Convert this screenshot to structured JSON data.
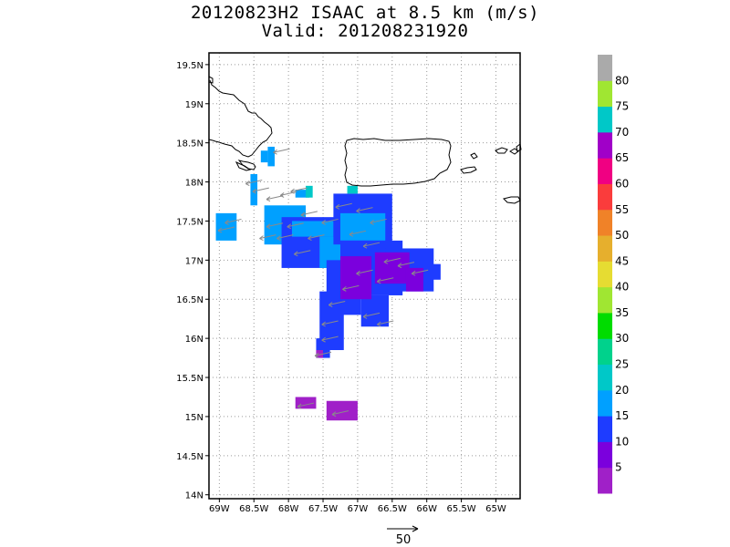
{
  "title": {
    "line1": "20120823H2 ISAAC at 8.5 km (m/s)",
    "line2": "Valid: 201208231920"
  },
  "map": {
    "lon_range": [
      -69.15,
      -64.65
    ],
    "lat_range": [
      13.95,
      19.65
    ],
    "lon_ticks": [
      -69,
      -68.5,
      -68,
      -67.5,
      -67,
      -66.5,
      -66,
      -65.5,
      -65
    ],
    "lon_tick_labels": [
      "69W",
      "68.5W",
      "68W",
      "67.5W",
      "67W",
      "66.5W",
      "66W",
      "65.5W",
      "65W"
    ],
    "lat_ticks": [
      14,
      14.5,
      15,
      15.5,
      16,
      16.5,
      17,
      17.5,
      18,
      18.5,
      19,
      19.5
    ],
    "lat_tick_labels": [
      "14N",
      "14.5N",
      "15N",
      "15.5N",
      "16N",
      "16.5N",
      "17N",
      "17.5N",
      "18N",
      "18.5N",
      "19N",
      "19.5N"
    ],
    "grid": "dotted"
  },
  "colorbar": {
    "levels": [
      5,
      10,
      15,
      20,
      25,
      30,
      35,
      40,
      45,
      50,
      55,
      60,
      65,
      70,
      75,
      80
    ],
    "labels": [
      "5",
      "10",
      "15",
      "20",
      "25",
      "30",
      "35",
      "40",
      "45",
      "50",
      "55",
      "60",
      "65",
      "70",
      "75",
      "80"
    ],
    "colors": [
      "#a020c8",
      "#7b00dd",
      "#1e3cff",
      "#00a0ff",
      "#00c8c8",
      "#00d28c",
      "#00dc00",
      "#a0e632",
      "#e6dc32",
      "#e6af2d",
      "#f08228",
      "#fa3c3c",
      "#f00082",
      "#a000c8",
      "#00c8c8",
      "#a0e632",
      "#aaaaaa"
    ]
  },
  "wind_field": {
    "blocks": [
      {
        "lon": [
          -69.05,
          -68.75
        ],
        "lat": [
          17.25,
          17.6
        ],
        "level": 3
      },
      {
        "lon": [
          -68.55,
          -68.45
        ],
        "lat": [
          17.7,
          18.1
        ],
        "level": 3
      },
      {
        "lon": [
          -68.3,
          -68.2
        ],
        "lat": [
          18.2,
          18.45
        ],
        "level": 3
      },
      {
        "lon": [
          -68.4,
          -68.3
        ],
        "lat": [
          18.25,
          18.4
        ],
        "level": 3
      },
      {
        "lon": [
          -67.9,
          -67.7
        ],
        "lat": [
          17.8,
          17.9
        ],
        "level": 3
      },
      {
        "lon": [
          -67.75,
          -67.65
        ],
        "lat": [
          17.8,
          17.95
        ],
        "level": 4
      },
      {
        "lon": [
          -68.35,
          -67.75
        ],
        "lat": [
          17.2,
          17.7
        ],
        "level": 3
      },
      {
        "lon": [
          -68.1,
          -67.3
        ],
        "lat": [
          16.9,
          17.55
        ],
        "level": 2
      },
      {
        "lon": [
          -67.95,
          -67.35
        ],
        "lat": [
          17.3,
          17.5
        ],
        "level": 3
      },
      {
        "lon": [
          -67.55,
          -67.25
        ],
        "lat": [
          16.9,
          17.3
        ],
        "level": 3
      },
      {
        "lon": [
          -67.35,
          -66.5
        ],
        "lat": [
          17.2,
          17.85
        ],
        "level": 2
      },
      {
        "lon": [
          -67.25,
          -66.6
        ],
        "lat": [
          17.25,
          17.6
        ],
        "level": 3
      },
      {
        "lon": [
          -67.15,
          -67.0
        ],
        "lat": [
          17.85,
          17.95
        ],
        "level": 4
      },
      {
        "lon": [
          -67.25,
          -66.35
        ],
        "lat": [
          16.55,
          17.25
        ],
        "level": 2
      },
      {
        "lon": [
          -66.6,
          -65.9
        ],
        "lat": [
          16.6,
          17.15
        ],
        "level": 2
      },
      {
        "lon": [
          -65.95,
          -65.8
        ],
        "lat": [
          16.75,
          16.95
        ],
        "level": 2
      },
      {
        "lon": [
          -67.45,
          -67.1
        ],
        "lat": [
          16.4,
          17.0
        ],
        "level": 2
      },
      {
        "lon": [
          -67.55,
          -67.2
        ],
        "lat": [
          15.85,
          16.6
        ],
        "level": 2
      },
      {
        "lon": [
          -67.6,
          -67.4
        ],
        "lat": [
          15.75,
          16.0
        ],
        "level": 2
      },
      {
        "lon": [
          -67.25,
          -66.95
        ],
        "lat": [
          16.3,
          16.6
        ],
        "level": 2
      },
      {
        "lon": [
          -66.95,
          -66.55
        ],
        "lat": [
          16.15,
          16.55
        ],
        "level": 2
      },
      {
        "lon": [
          -67.25,
          -66.8
        ],
        "lat": [
          16.5,
          17.05
        ],
        "level": 1
      },
      {
        "lon": [
          -66.75,
          -66.25
        ],
        "lat": [
          16.7,
          17.1
        ],
        "level": 1
      },
      {
        "lon": [
          -66.3,
          -66.05
        ],
        "lat": [
          16.6,
          16.9
        ],
        "level": 1
      },
      {
        "lon": [
          -67.6,
          -67.5
        ],
        "lat": [
          15.75,
          15.85
        ],
        "level": 0
      },
      {
        "lon": [
          -67.9,
          -67.6
        ],
        "lat": [
          15.1,
          15.25
        ],
        "level": 0
      },
      {
        "lon": [
          -67.45,
          -67.0
        ],
        "lat": [
          14.95,
          15.2
        ],
        "level": 0
      }
    ],
    "vectors": [
      {
        "lon": -68.9,
        "lat": 17.4
      },
      {
        "lon": -68.8,
        "lat": 17.5
      },
      {
        "lon": -68.4,
        "lat": 17.9
      },
      {
        "lon": -68.2,
        "lat": 17.8
      },
      {
        "lon": -68.0,
        "lat": 17.85
      },
      {
        "lon": -67.85,
        "lat": 17.9
      },
      {
        "lon": -68.1,
        "lat": 18.4
      },
      {
        "lon": -68.2,
        "lat": 17.45
      },
      {
        "lon": -68.05,
        "lat": 17.3
      },
      {
        "lon": -67.9,
        "lat": 17.45
      },
      {
        "lon": -67.7,
        "lat": 17.6
      },
      {
        "lon": -67.6,
        "lat": 17.3
      },
      {
        "lon": -67.4,
        "lat": 17.5
      },
      {
        "lon": -67.2,
        "lat": 17.7
      },
      {
        "lon": -66.9,
        "lat": 17.65
      },
      {
        "lon": -66.7,
        "lat": 17.5
      },
      {
        "lon": -67.0,
        "lat": 17.35
      },
      {
        "lon": -66.8,
        "lat": 17.2
      },
      {
        "lon": -66.5,
        "lat": 17.0
      },
      {
        "lon": -66.3,
        "lat": 16.95
      },
      {
        "lon": -66.1,
        "lat": 16.85
      },
      {
        "lon": -66.6,
        "lat": 16.75
      },
      {
        "lon": -66.9,
        "lat": 16.85
      },
      {
        "lon": -67.1,
        "lat": 16.65
      },
      {
        "lon": -67.3,
        "lat": 16.45
      },
      {
        "lon": -67.4,
        "lat": 16.2
      },
      {
        "lon": -67.4,
        "lat": 16.0
      },
      {
        "lon": -67.5,
        "lat": 15.8
      },
      {
        "lon": -67.75,
        "lat": 15.15
      },
      {
        "lon": -67.25,
        "lat": 15.05
      },
      {
        "lon": -66.8,
        "lat": 16.3
      },
      {
        "lon": -66.6,
        "lat": 16.2
      },
      {
        "lon": -67.8,
        "lat": 17.1
      },
      {
        "lon": -68.3,
        "lat": 17.3
      },
      {
        "lon": -68.5,
        "lat": 18.0
      }
    ]
  },
  "vector_scale": {
    "label": "50"
  }
}
